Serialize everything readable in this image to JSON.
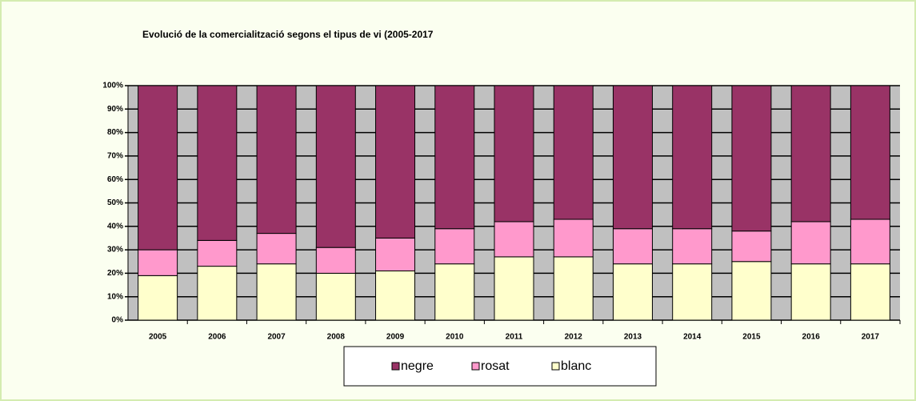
{
  "chart_data": {
    "type": "stacked_bar_100",
    "title": "Evolució de la comercialització segons el tipus de vi (2005-2017",
    "categories": [
      "2005",
      "2006",
      "2007",
      "2008",
      "2009",
      "2010",
      "2011",
      "2012",
      "2013",
      "2014",
      "2015",
      "2016",
      "2017"
    ],
    "series": [
      {
        "name": "negre",
        "color": "#993366",
        "values": [
          70,
          66,
          63,
          69,
          65,
          61,
          58,
          57,
          61,
          61,
          62,
          58,
          57
        ]
      },
      {
        "name": "rosat",
        "color": "#ff99cc",
        "values": [
          11,
          11,
          13,
          11,
          14,
          15,
          15,
          16,
          15,
          15,
          13,
          18,
          19
        ]
      },
      {
        "name": "blanc",
        "color": "#ffffcc",
        "values": [
          19,
          23,
          24,
          20,
          21,
          24,
          27,
          27,
          24,
          24,
          25,
          24,
          24
        ]
      }
    ],
    "ylim": [
      0,
      100
    ],
    "yticks": [
      {
        "value": 0,
        "label": "0%"
      },
      {
        "value": 10,
        "label": "10%"
      },
      {
        "value": 20,
        "label": "20%"
      },
      {
        "value": 30,
        "label": "30%"
      },
      {
        "value": 40,
        "label": "40%"
      },
      {
        "value": 50,
        "label": "50%"
      },
      {
        "value": 60,
        "label": "60%"
      },
      {
        "value": 70,
        "label": "70%"
      },
      {
        "value": 80,
        "label": "80%"
      },
      {
        "value": 90,
        "label": "90%"
      },
      {
        "value": 100,
        "label": "100%"
      }
    ],
    "grid": true,
    "legend": "bottom"
  }
}
